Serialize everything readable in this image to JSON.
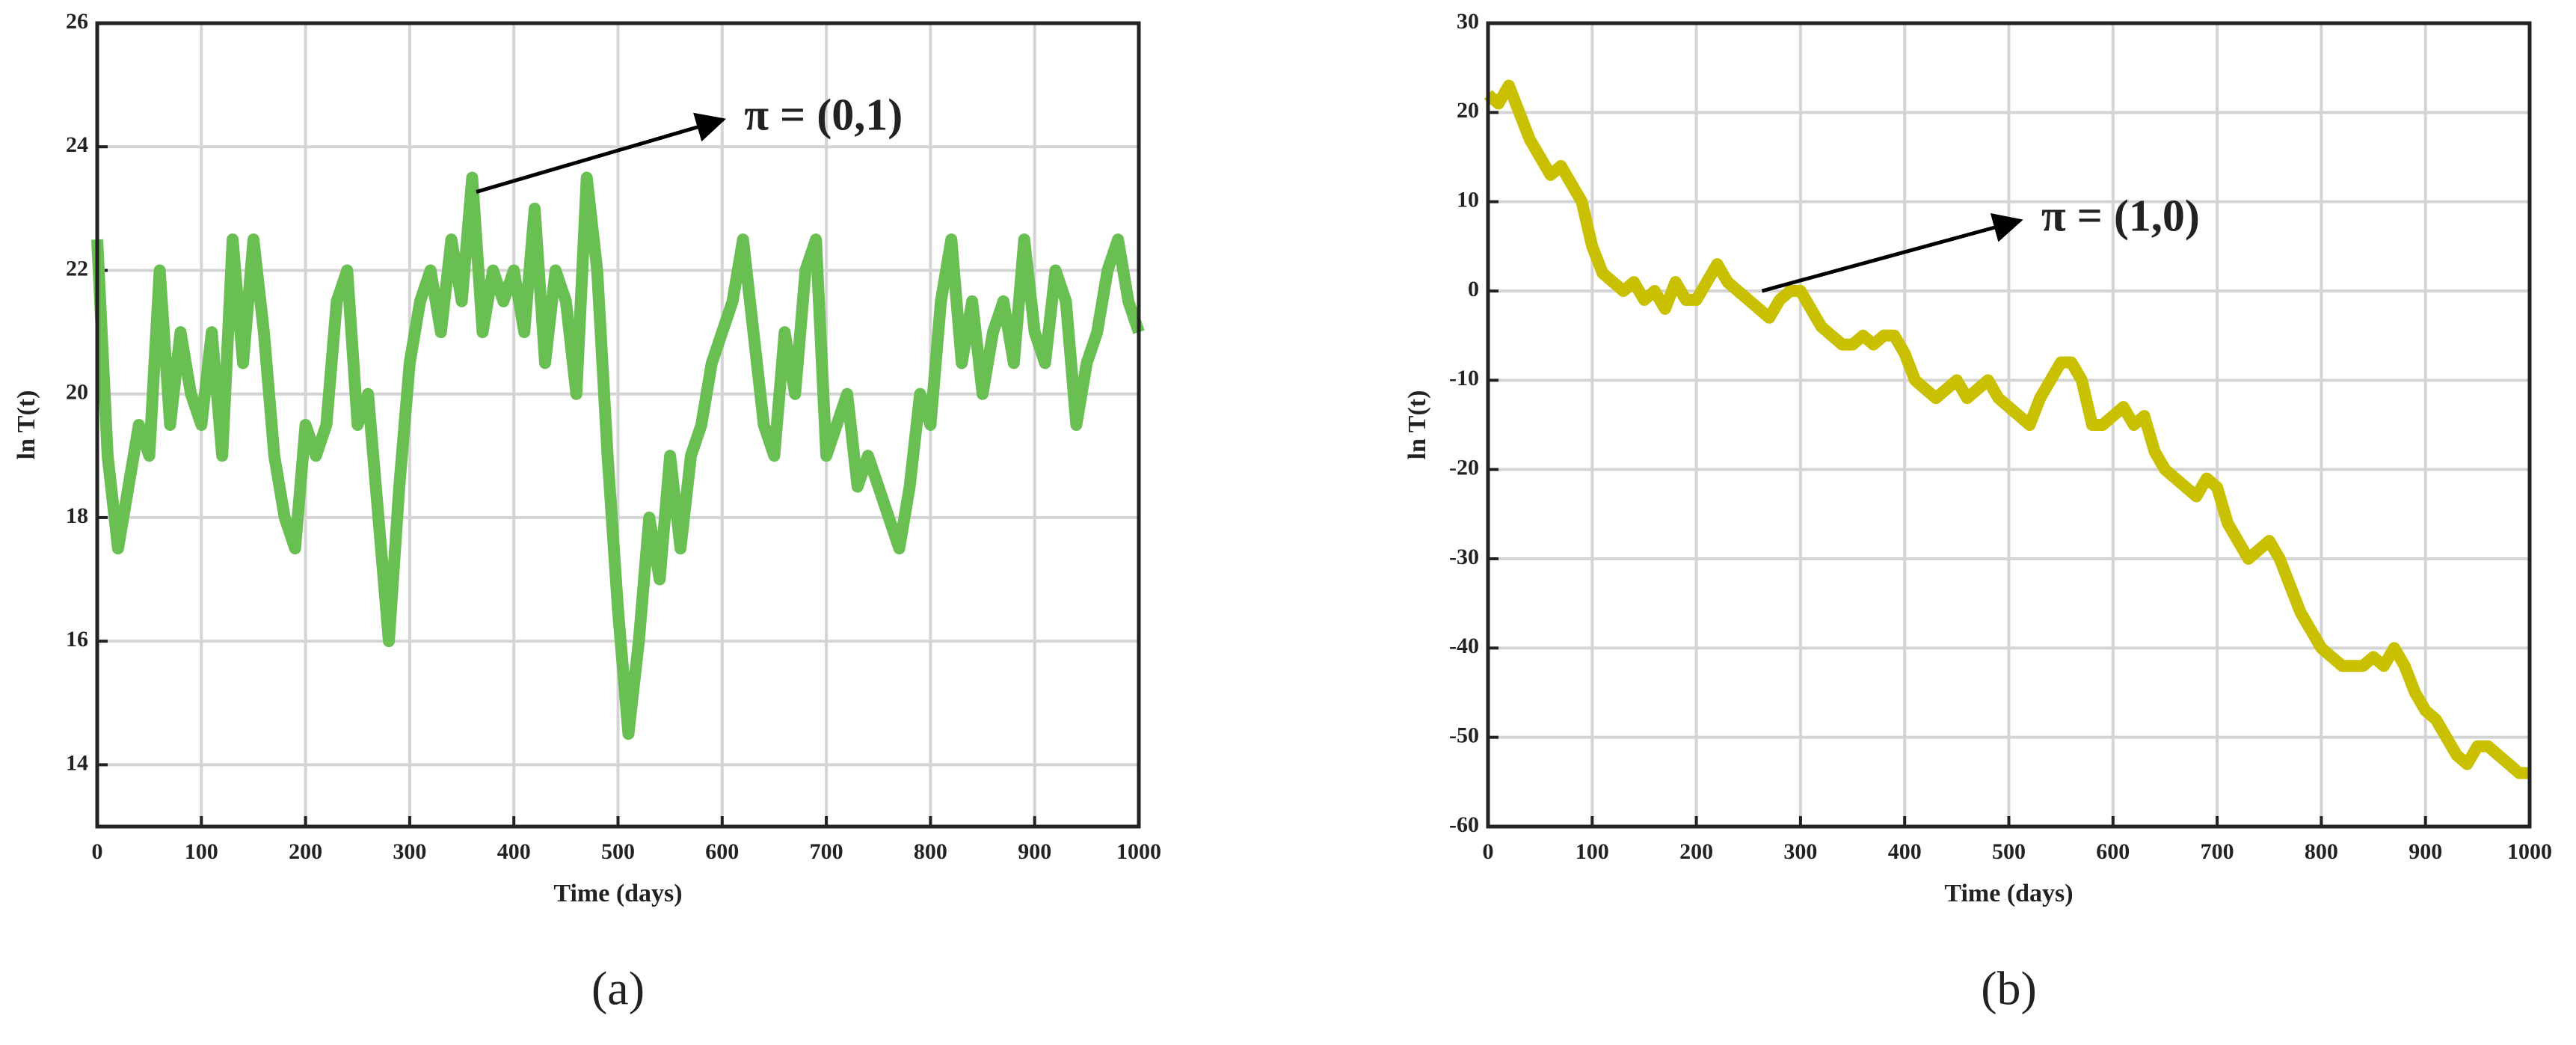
{
  "chart_data": [
    {
      "type": "line",
      "caption": "(a)",
      "xlabel": "Time (days)",
      "ylabel": "ln T(t)",
      "color": "#6abf53",
      "grid": true,
      "xlim": [
        0,
        1000
      ],
      "ylim": [
        13,
        26
      ],
      "xticks": [
        0,
        100,
        200,
        300,
        400,
        500,
        600,
        700,
        800,
        900,
        1000
      ],
      "yticks": [
        14,
        16,
        18,
        20,
        22,
        24,
        26
      ],
      "annotation": {
        "text": "π = (0,1)",
        "xy": [
          601,
          24.44
        ],
        "xytext": [
          364,
          23.27
        ]
      },
      "x": [
        0,
        10,
        20,
        30,
        40,
        50,
        60,
        70,
        80,
        90,
        100,
        110,
        120,
        130,
        140,
        150,
        160,
        170,
        180,
        190,
        200,
        210,
        220,
        230,
        240,
        250,
        260,
        270,
        280,
        290,
        300,
        310,
        320,
        330,
        340,
        350,
        360,
        370,
        380,
        390,
        400,
        410,
        420,
        430,
        440,
        450,
        460,
        470,
        480,
        490,
        500,
        510,
        520,
        530,
        540,
        550,
        560,
        570,
        580,
        590,
        600,
        610,
        620,
        630,
        640,
        650,
        660,
        670,
        680,
        690,
        700,
        710,
        720,
        730,
        740,
        750,
        760,
        770,
        780,
        790,
        800,
        810,
        820,
        830,
        840,
        850,
        860,
        870,
        880,
        890,
        900,
        910,
        920,
        930,
        940,
        950,
        960,
        970,
        980,
        990,
        1000
      ],
      "values": [
        22.5,
        19,
        17.5,
        18.5,
        19.5,
        19,
        22,
        19.5,
        21,
        20,
        19.5,
        21,
        19,
        22.5,
        20.5,
        22.5,
        21,
        19,
        18,
        17.5,
        19.5,
        19,
        19.5,
        21.5,
        22,
        19.5,
        20,
        18,
        16,
        18.5,
        20.5,
        21.5,
        22,
        21,
        22.5,
        21.5,
        23.5,
        21,
        22,
        21.5,
        22,
        21,
        23,
        20.5,
        22,
        21.5,
        20,
        23.5,
        22,
        19,
        16.5,
        14.5,
        16,
        18,
        17,
        19,
        17.5,
        19,
        19.5,
        20.5,
        21,
        21.5,
        22.5,
        21,
        19.5,
        19,
        21,
        20,
        22,
        22.5,
        19,
        19.5,
        20,
        18.5,
        19,
        18.5,
        18,
        17.5,
        18.5,
        20,
        19.5,
        21.5,
        22.5,
        20.5,
        21.5,
        20,
        21,
        21.5,
        20.5,
        22.5,
        21,
        20.5,
        22,
        21.5,
        19.5,
        20.5,
        21,
        22,
        22.5,
        21.5,
        21
      ]
    },
    {
      "type": "line",
      "caption": "(b)",
      "xlabel": "Time (days)",
      "ylabel": "ln T(t)",
      "color": "#c8c000",
      "grid": true,
      "xlim": [
        0,
        1000
      ],
      "ylim": [
        -60,
        30
      ],
      "xticks": [
        0,
        100,
        200,
        300,
        400,
        500,
        600,
        700,
        800,
        900,
        1000
      ],
      "yticks": [
        -60,
        -50,
        -40,
        -30,
        -20,
        -10,
        0,
        10,
        20,
        30
      ],
      "annotation": {
        "text": "π = (1,0)",
        "xy": [
          511,
          7.9
        ],
        "xytext": [
          263,
          0
        ]
      },
      "x": [
        0,
        10,
        20,
        30,
        40,
        50,
        60,
        70,
        80,
        90,
        100,
        110,
        120,
        130,
        140,
        150,
        160,
        170,
        180,
        190,
        200,
        210,
        220,
        230,
        240,
        250,
        260,
        270,
        280,
        290,
        300,
        310,
        320,
        330,
        340,
        350,
        360,
        370,
        380,
        390,
        400,
        410,
        420,
        430,
        440,
        450,
        460,
        470,
        480,
        490,
        500,
        510,
        520,
        530,
        540,
        550,
        560,
        570,
        580,
        590,
        600,
        610,
        620,
        630,
        640,
        650,
        660,
        670,
        680,
        690,
        700,
        710,
        720,
        730,
        740,
        750,
        760,
        770,
        780,
        790,
        800,
        810,
        820,
        830,
        840,
        850,
        860,
        870,
        880,
        890,
        900,
        910,
        920,
        930,
        940,
        950,
        960,
        970,
        980,
        990,
        1000
      ],
      "values": [
        22,
        21,
        23,
        20,
        17,
        15,
        13,
        14,
        12,
        10,
        5,
        2,
        1,
        0,
        1,
        -1,
        0,
        -2,
        1,
        -1,
        -1,
        1,
        3,
        1,
        0,
        -1,
        -2,
        -3,
        -1,
        0,
        0,
        -2,
        -4,
        -5,
        -6,
        -6,
        -5,
        -6,
        -5,
        -5,
        -7,
        -10,
        -11,
        -12,
        -11,
        -10,
        -12,
        -11,
        -10,
        -12,
        -13,
        -14,
        -15,
        -12,
        -10,
        -8,
        -8,
        -10,
        -15,
        -15,
        -14,
        -13,
        -15,
        -14,
        -18,
        -20,
        -21,
        -22,
        -23,
        -21,
        -22,
        -26,
        -28,
        -30,
        -29,
        -28,
        -30,
        -33,
        -36,
        -38,
        -40,
        -41,
        -42,
        -42,
        -42,
        -41,
        -42,
        -40,
        -42,
        -45,
        -47,
        -48,
        -50,
        -52,
        -53,
        -51,
        -51,
        -52,
        -53,
        -54,
        -54
      ]
    }
  ]
}
